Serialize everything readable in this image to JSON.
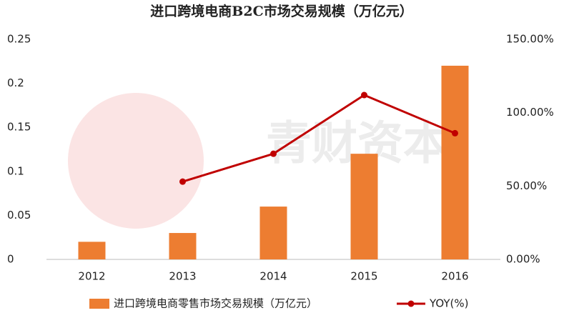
{
  "chart_data": {
    "type": "bar_line",
    "title": "进口跨境电商B2C市场交易规模（万亿元）",
    "watermark": "青财资本",
    "categories": [
      "2012",
      "2013",
      "2014",
      "2015",
      "2016"
    ],
    "series": [
      {
        "name": "进口跨境电商零售市场交易规模（万亿元）",
        "type": "bar",
        "color": "#ed7d31",
        "values": [
          0.02,
          0.03,
          0.06,
          0.12,
          0.22
        ]
      },
      {
        "name": "YOY(%)",
        "type": "line",
        "axis": "y2",
        "color": "#c00000",
        "values": [
          null,
          53,
          72,
          112,
          86
        ]
      }
    ],
    "ylim": [
      0,
      0.25
    ],
    "yticks": [
      0,
      0.05,
      0.1,
      0.15,
      0.2,
      0.25
    ],
    "y2lim": [
      0,
      150
    ],
    "y2ticks": [
      {
        "value": 0,
        "label": "0.00%"
      },
      {
        "value": 50,
        "label": "50.00%"
      },
      {
        "value": 100,
        "label": "100.00%"
      },
      {
        "value": 150,
        "label": "150.00%"
      }
    ],
    "grid": false,
    "legend": "bottom"
  }
}
